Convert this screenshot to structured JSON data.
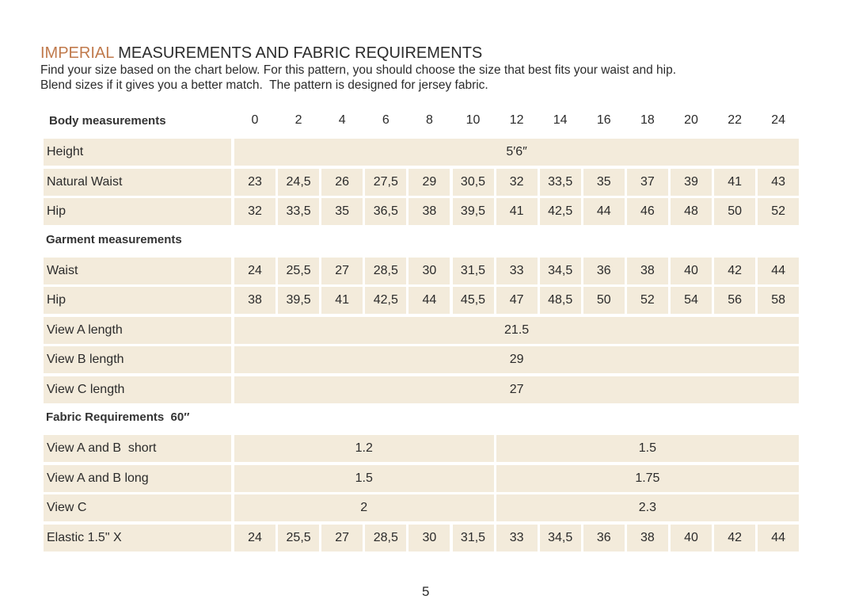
{
  "header": {
    "title_accent": "IMPERIAL",
    "title": "MEASUREMENTS AND FABRIC REQUIREMENTS",
    "intro": [
      "Find your size based on the chart below. For this pattern, you should choose the size that best fits your waist and hip.",
      "Blend sizes if it gives you a better match.  The pattern is designed for jersey fabric."
    ]
  },
  "table": {
    "sizes": [
      "0",
      "2",
      "4",
      "6",
      "8",
      "10",
      "12",
      "14",
      "16",
      "18",
      "20",
      "22",
      "24"
    ],
    "sections": [
      {
        "title": "Body measurements",
        "rows": [
          {
            "label": "Height",
            "cells": [
              "5′6″"
            ]
          },
          {
            "label": "Natural Waist",
            "cells": [
              "23",
              "24,5",
              "26",
              "27,5",
              "29",
              "30,5",
              "32",
              "33,5",
              "35",
              "37",
              "39",
              "41",
              "43"
            ]
          },
          {
            "label": "Hip",
            "cells": [
              "32",
              "33,5",
              "35",
              "36,5",
              "38",
              "39,5",
              "41",
              "42,5",
              "44",
              "46",
              "48",
              "50",
              "52"
            ]
          }
        ]
      },
      {
        "title": "Garment measurements",
        "rows": [
          {
            "label": "Waist",
            "cells": [
              "24",
              "25,5",
              "27",
              "28,5",
              "30",
              "31,5",
              "33",
              "34,5",
              "36",
              "38",
              "40",
              "42",
              "44"
            ]
          },
          {
            "label": "Hip",
            "cells": [
              "38",
              "39,5",
              "41",
              "42,5",
              "44",
              "45,5",
              "47",
              "48,5",
              "50",
              "52",
              "54",
              "56",
              "58"
            ]
          },
          {
            "label": "View A length",
            "cells": [
              "21.5"
            ]
          },
          {
            "label": "View B length",
            "cells": [
              "29"
            ]
          },
          {
            "label": "View C length",
            "cells": [
              "27"
            ]
          }
        ]
      },
      {
        "title": "Fabric Requirements  60″",
        "rows": [
          {
            "label": "View A and B  short",
            "cells": [
              "1.2",
              "1.5"
            ]
          },
          {
            "label": "View A and B long",
            "cells": [
              "1.5",
              "1.75"
            ]
          },
          {
            "label": "View C",
            "cells": [
              "2",
              "2.3"
            ]
          },
          {
            "label": "Elastic 1.5\" X",
            "cells": [
              "24",
              "25,5",
              "27",
              "28,5",
              "30",
              "31,5",
              "33",
              "34,5",
              "36",
              "38",
              "40",
              "42",
              "44"
            ]
          }
        ]
      }
    ]
  },
  "page_number": "5"
}
